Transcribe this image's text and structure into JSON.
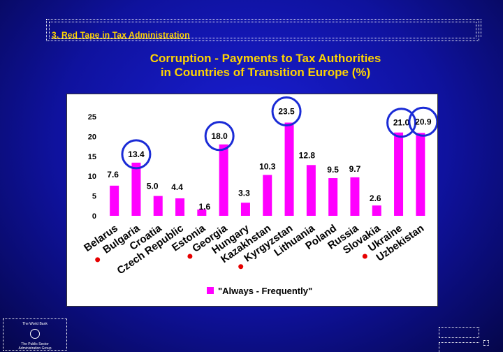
{
  "header": {
    "section_label": "3. Red Tape in Tax Administration",
    "title_line1": "Corruption -  Payments to Tax Authorities",
    "title_line2": "in Countries of Transition Europe (%)"
  },
  "footer": {
    "logo_line1": "The World Bank",
    "logo_line2": "The Public Sector",
    "logo_line3": "Administration Group"
  },
  "colors": {
    "bar": "#ff00ff",
    "highlight_circle": "#1a2bd6",
    "country_dot": "#e60000",
    "text": "#000000"
  },
  "chart_data": {
    "type": "bar",
    "categories": [
      "Belarus",
      "Bulgaria",
      "Croatia",
      "Czech Republic",
      "Estonia",
      "Georgia",
      "Hungary",
      "Kazakhstan",
      "Kyrgyzstan",
      "Lithuania",
      "Poland",
      "Russia",
      "Slovakia",
      "Ukraine",
      "Uzbekistan"
    ],
    "values": [
      7.6,
      13.4,
      5.0,
      4.4,
      1.6,
      18.0,
      3.3,
      10.3,
      23.5,
      12.8,
      9.5,
      9.7,
      2.6,
      21.0,
      20.9
    ],
    "value_labels": [
      "7.6",
      "13.4",
      "5.0",
      "4.4",
      "1.6",
      "18.0",
      "3.3",
      "10.3",
      "23.5",
      "12.8",
      "9.5",
      "9.7",
      "2.6",
      "21.0",
      "20.9"
    ],
    "series": [
      {
        "name": "\"Always - Frequently\"",
        "values": [
          7.6,
          13.4,
          5.0,
          4.4,
          1.6,
          18.0,
          3.3,
          10.3,
          23.5,
          12.8,
          9.5,
          9.7,
          2.6,
          21.0,
          20.9
        ]
      }
    ],
    "yticks": [
      "0",
      "5",
      "10",
      "15",
      "20",
      "25"
    ],
    "ylim": [
      0,
      25
    ],
    "highlighted": [
      "Bulgaria",
      "Georgia",
      "Kyrgyzstan",
      "Ukraine",
      "Uzbekistan"
    ],
    "marked_countries": [
      "Bulgaria",
      "Georgia",
      "Kyrgyzstan",
      "Ukraine"
    ],
    "legend_position": "bottom",
    "grid": false
  }
}
